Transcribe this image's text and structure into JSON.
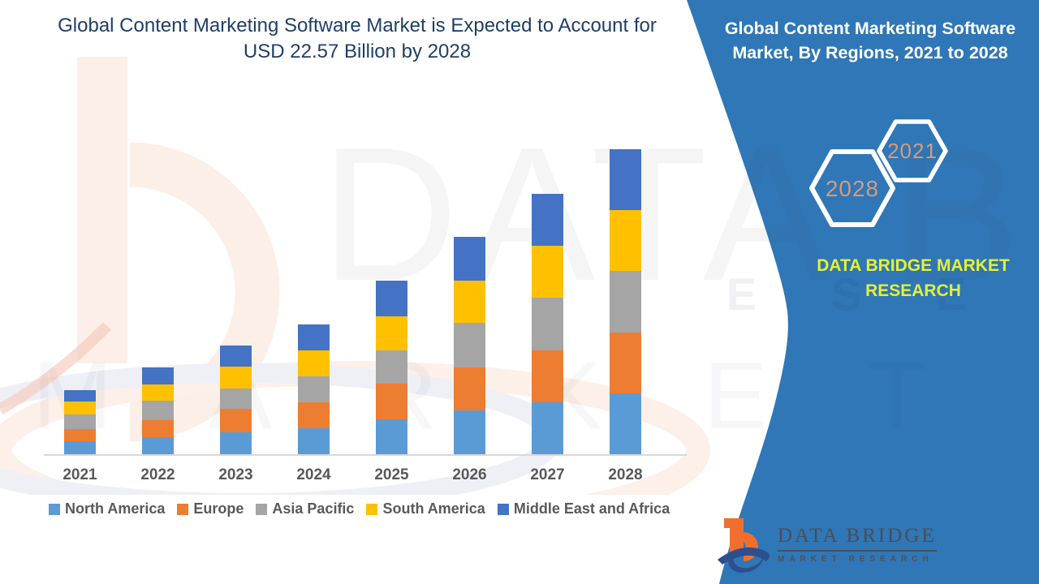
{
  "left_section": {
    "title": {
      "line1": "Global Content Marketing Software Market is Expected to Account for",
      "line2": "USD 22.57 Billion by 2028",
      "color": "#1E3F66"
    }
  },
  "chart_data": {
    "type": "bar",
    "stacked": true,
    "title": "Global Content Marketing Software Market is Expected to Account for USD 22.57 Billion by 2028",
    "unit": "USD Billion",
    "categories": [
      "2021",
      "2022",
      "2023",
      "2024",
      "2025",
      "2026",
      "2027",
      "2028"
    ],
    "series": [
      {
        "name": "North America",
        "color": "#5B9BD5",
        "values": [
          0.98,
          1.28,
          1.64,
          1.94,
          2.58,
          3.24,
          3.82,
          4.5
        ]
      },
      {
        "name": "Europe",
        "color": "#ED7D31",
        "values": [
          0.86,
          1.26,
          1.7,
          1.9,
          2.62,
          3.18,
          3.88,
          4.52
        ]
      },
      {
        "name": "Asia Pacific",
        "color": "#A5A5A5",
        "values": [
          1.1,
          1.4,
          1.5,
          1.94,
          2.5,
          3.32,
          3.88,
          4.54
        ]
      },
      {
        "name": "South America",
        "color": "#FFC000",
        "values": [
          1.0,
          1.2,
          1.64,
          1.92,
          2.54,
          3.14,
          3.88,
          4.51
        ]
      },
      {
        "name": "Middle East and Africa",
        "color": "#4472C4",
        "values": [
          0.84,
          1.26,
          1.6,
          1.94,
          2.64,
          3.22,
          3.8,
          4.5
        ]
      }
    ],
    "totals_usd_billion_estimated": [
      4.78,
      6.4,
      8.08,
      9.64,
      12.88,
      16.1,
      19.26,
      22.57
    ],
    "xlabel": "",
    "ylabel": "",
    "y_axis_visible": false,
    "gridlines": false,
    "legend_position": "bottom"
  },
  "right_panel": {
    "background_color": "#2F77B6",
    "title": {
      "line1": "Global Content Marketing Software",
      "line2": "Market, By Regions, 2021 to 2028"
    },
    "hexagon_badges": [
      {
        "label": "2028"
      },
      {
        "label": "2021"
      }
    ],
    "hexagon_label_color": "#D49B7D",
    "brand": {
      "line1": "DATA BRIDGE MARKET",
      "line2": "RESEARCH",
      "color": "#E6F033"
    },
    "logo": {
      "title": "DATA BRIDGE",
      "subtitle": "MARKET RESEARCH"
    }
  },
  "watermarks": {
    "text_large": "DATA BRIDGE",
    "text_mid": "M A R K E T",
    "text_panel": "E S E A R C H"
  }
}
